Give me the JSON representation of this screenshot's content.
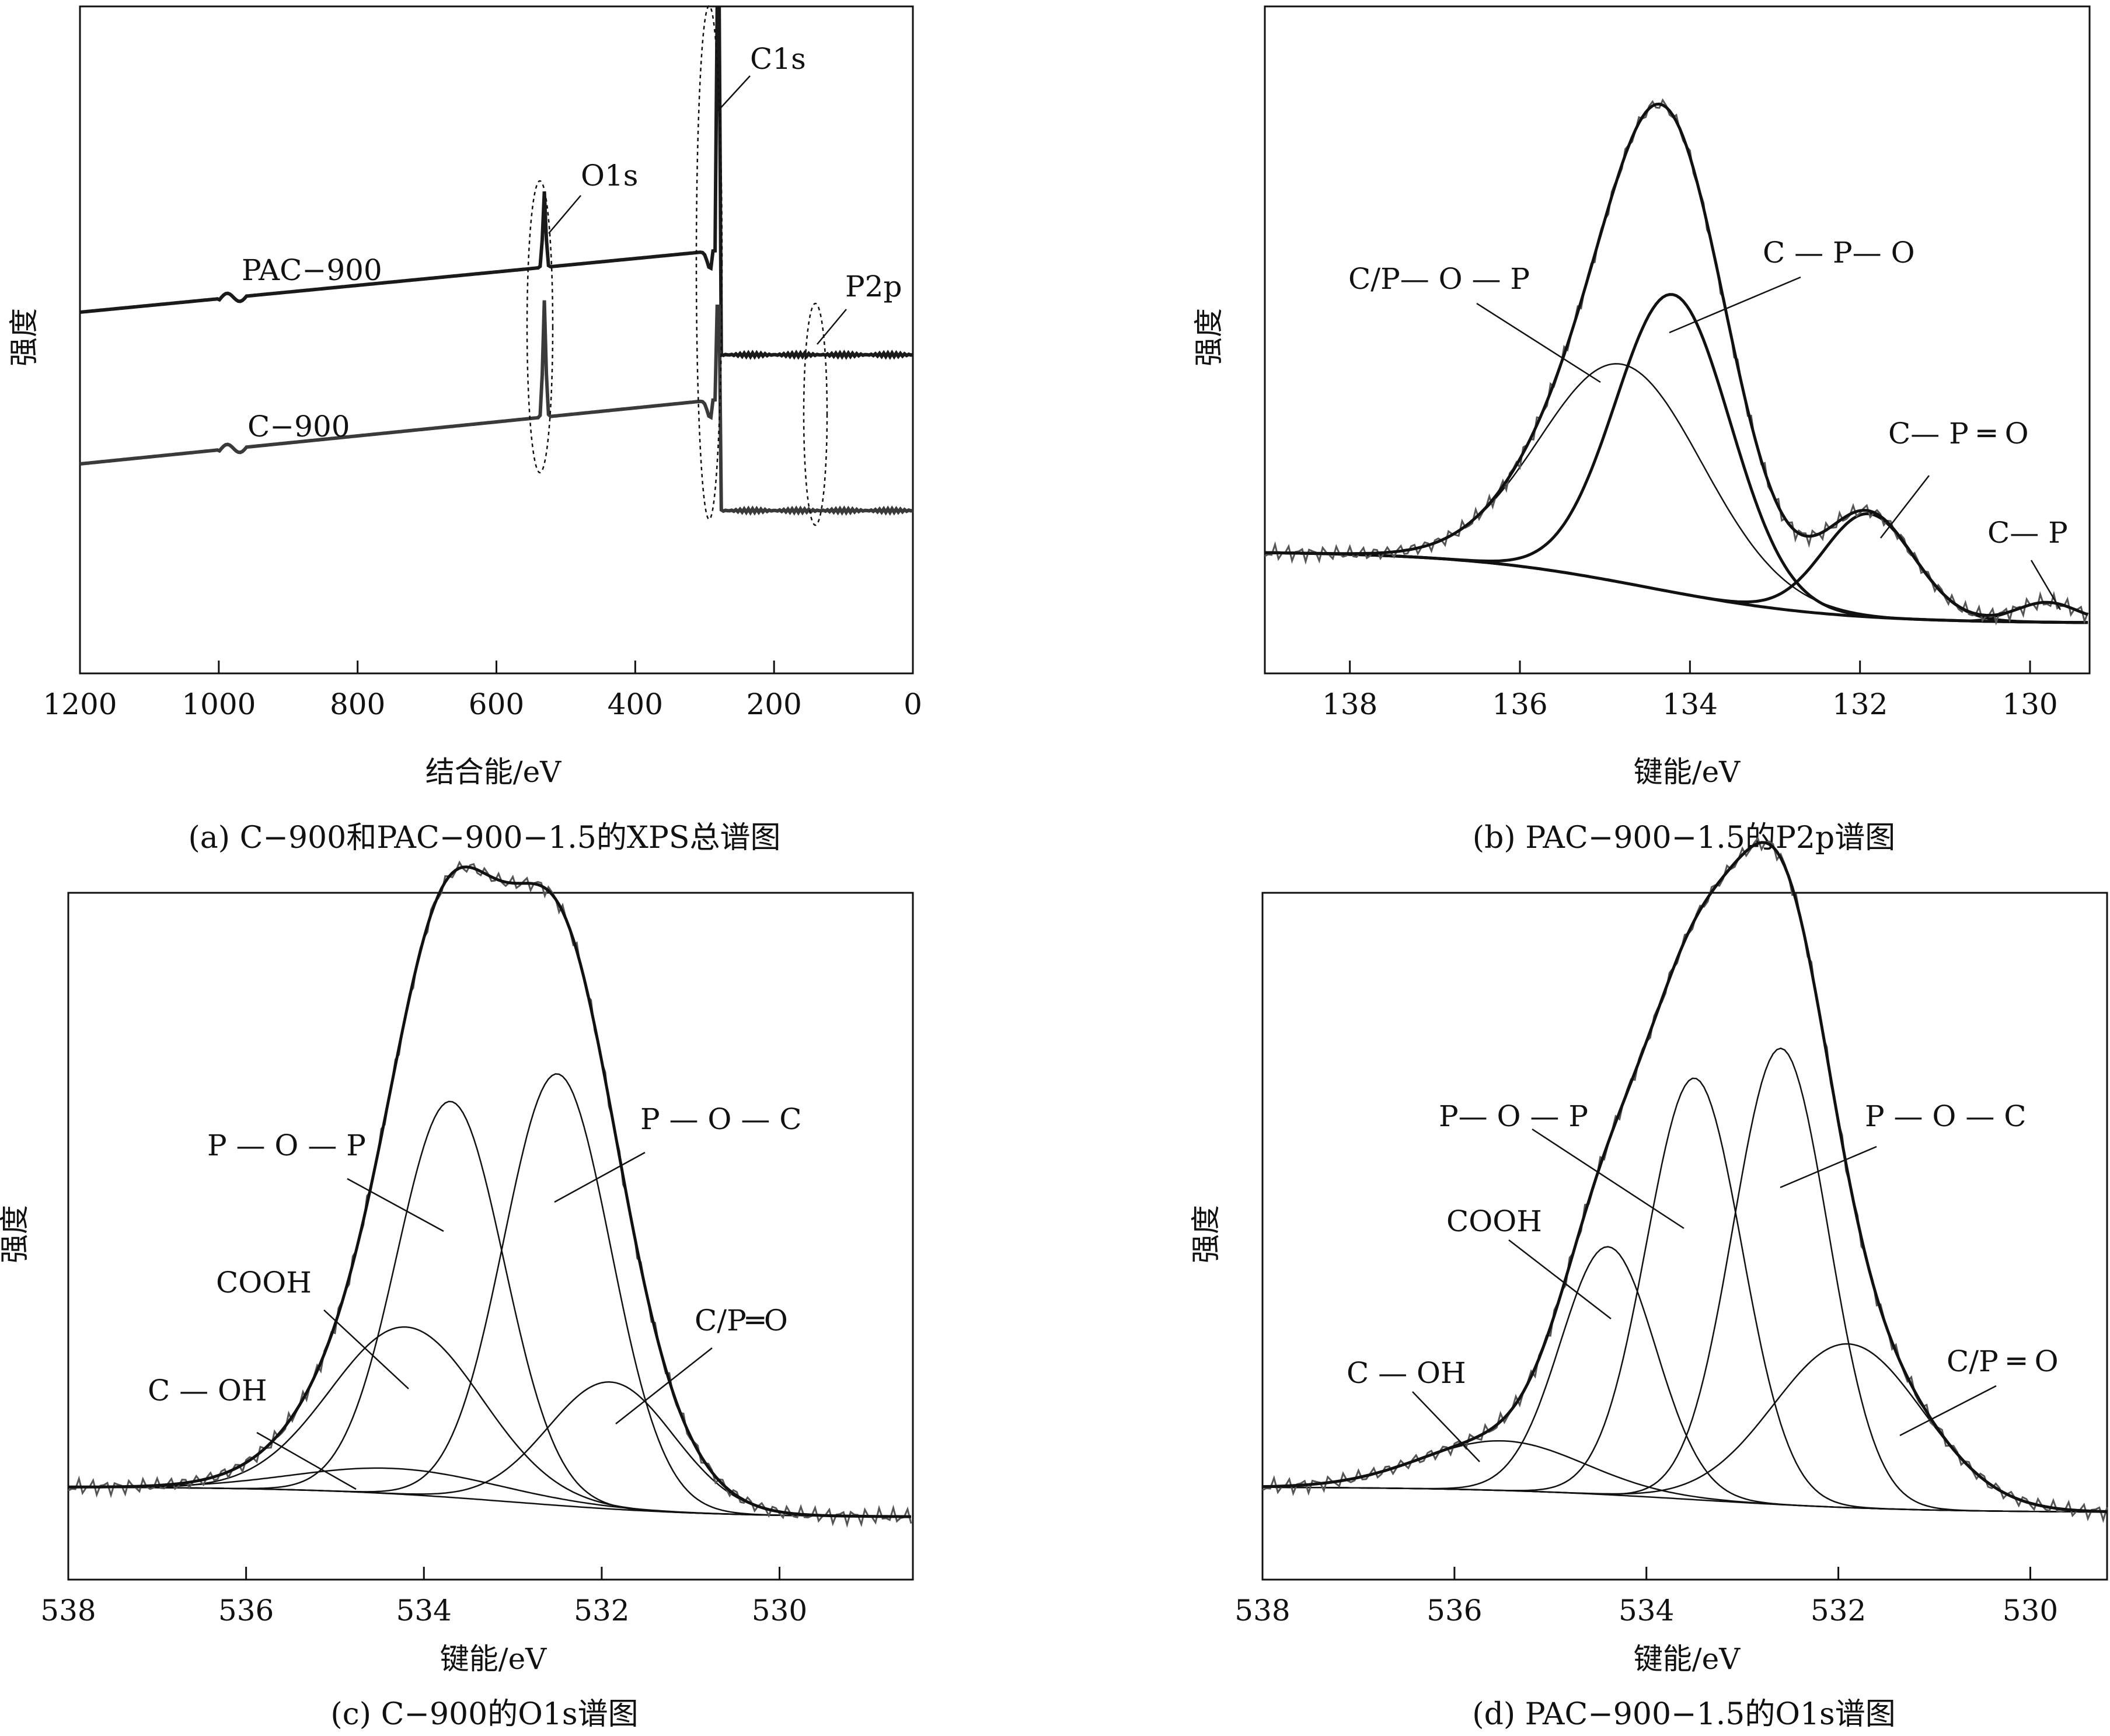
{
  "chart_data": [
    {
      "type": "line",
      "id": "a",
      "caption": "(a) C−900和PAC−900−1.5的XPS总谱图",
      "xlabel": "结合能/eV",
      "ylabel": "强度",
      "xlim": [
        1200,
        0
      ],
      "ticks": [
        1200,
        1000,
        800,
        600,
        400,
        200,
        0
      ],
      "series": [
        {
          "name": "PAC−900",
          "color": "#1a1a1a"
        },
        {
          "name": "C−900",
          "color": "#3a3a3a"
        }
      ],
      "annotations": [
        "O1s",
        "C1s",
        "P2p"
      ]
    },
    {
      "type": "line",
      "id": "b",
      "caption": "(b) PAC−900−1.5的P2p谱图",
      "xlabel": "键能/eV",
      "ylabel": "强度",
      "xlim": [
        139,
        129.3
      ],
      "ticks": [
        138,
        136,
        134,
        132,
        130
      ],
      "components": [
        {
          "name": "C/P— O — P",
          "center": 134.8,
          "height": 0.55
        },
        {
          "name": "C — P— O",
          "center": 134.2,
          "height": 0.75
        },
        {
          "name": "C— P ═ O",
          "center": 131.9,
          "height": 0.26
        },
        {
          "name": "C— P",
          "center": 129.8,
          "height": 0.05
        }
      ]
    },
    {
      "type": "line",
      "id": "c",
      "caption": "(c) C−900的O1s谱图",
      "xlabel": "键能/eV",
      "ylabel": "强度",
      "xlim": [
        538,
        528.5
      ],
      "ticks": [
        538,
        536,
        534,
        532,
        530
      ],
      "components": [
        {
          "name": "C — OH",
          "center": 534.3,
          "height": 0.05
        },
        {
          "name": "COOH",
          "center": 534.2,
          "height": 0.33
        },
        {
          "name": "P — O — P",
          "center": 533.7,
          "height": 0.78
        },
        {
          "name": "P — O — C",
          "center": 532.5,
          "height": 0.85
        },
        {
          "name": "C/P═O",
          "center": 531.9,
          "height": 0.25
        }
      ]
    },
    {
      "type": "line",
      "id": "d",
      "caption": "(d) PAC−900−1.5的O1s谱图",
      "xlabel": "键能/eV",
      "ylabel": "强度",
      "xlim": [
        538,
        529.2
      ],
      "ticks": [
        538,
        536,
        534,
        532,
        530
      ],
      "components": [
        {
          "name": "C — OH",
          "center": 535.5,
          "height": 0.1
        },
        {
          "name": "COOH",
          "center": 534.4,
          "height": 0.5
        },
        {
          "name": "P— O — P",
          "center": 533.5,
          "height": 0.85
        },
        {
          "name": "P — O — C",
          "center": 532.6,
          "height": 0.92
        },
        {
          "name": "C/P ═ O",
          "center": 531.9,
          "height": 0.33
        }
      ]
    }
  ]
}
